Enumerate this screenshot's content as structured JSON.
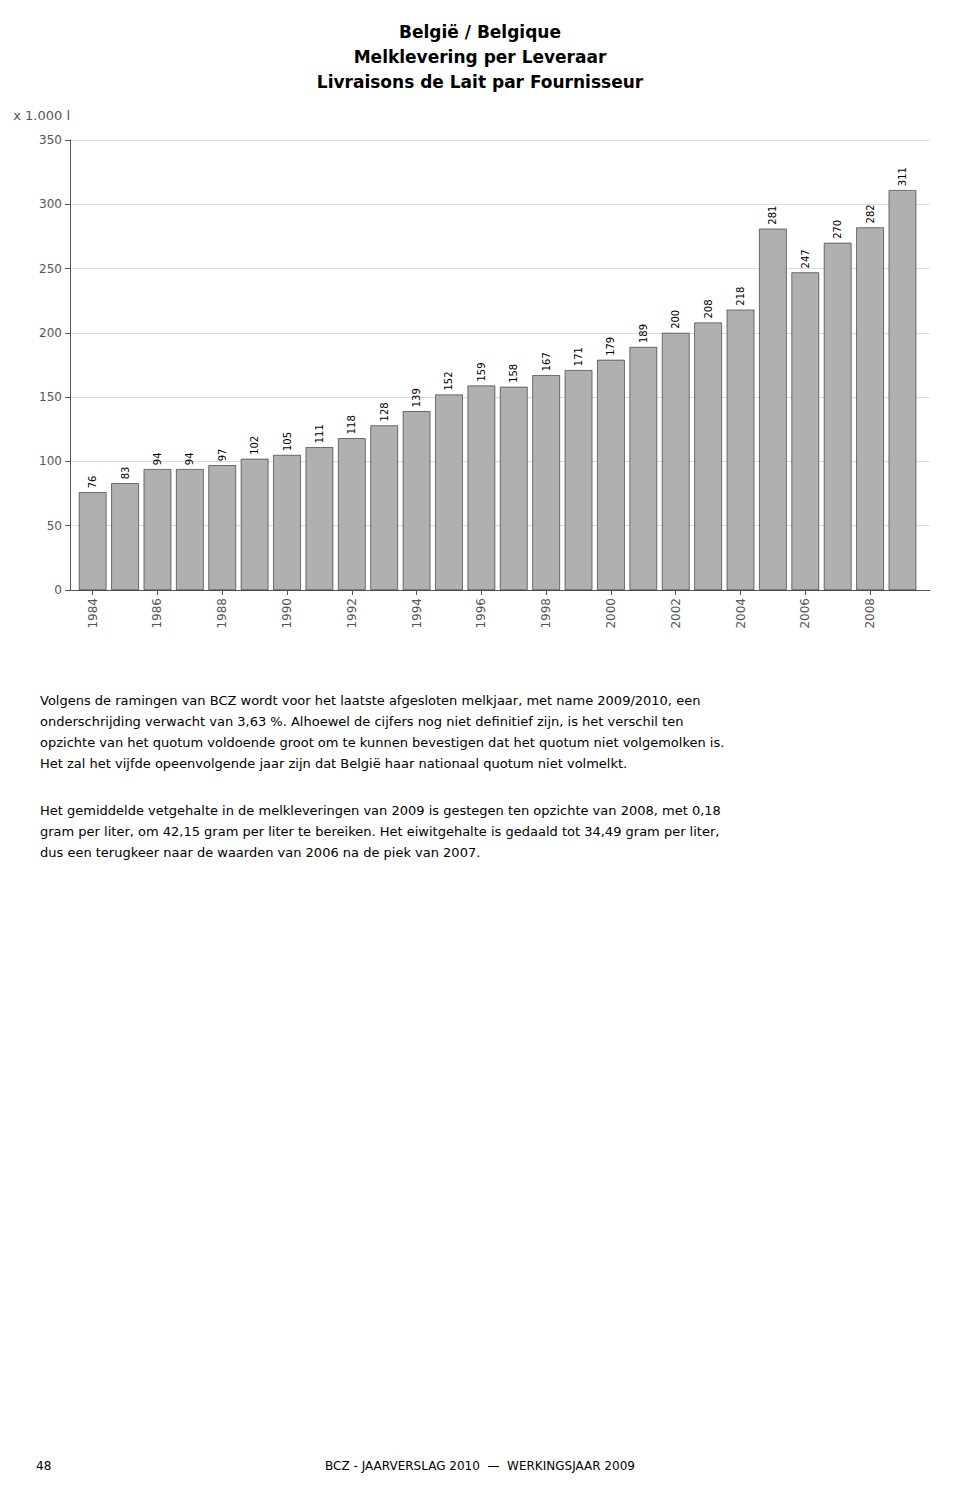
{
  "chart_data": {
    "type": "bar",
    "title": "België / Belgique\nMelklevering per Leveraar\nLivraisons de Lait par Fournisseur",
    "y_label": "x 1.000 l",
    "x": [
      1984,
      1985,
      1986,
      1987,
      1988,
      1989,
      1990,
      1991,
      1992,
      1993,
      1994,
      1995,
      1996,
      1997,
      1998,
      1999,
      2000,
      2001,
      2002,
      2003,
      2004,
      2005,
      2006,
      2007,
      2008,
      2009
    ],
    "values": [
      76,
      83,
      94,
      94,
      97,
      102,
      105,
      111,
      118,
      128,
      139,
      152,
      159,
      158,
      167,
      171,
      179,
      189,
      200,
      208,
      218,
      281,
      247,
      270,
      282,
      311
    ],
    "color": "#b0b0b0",
    "xlim": [
      1983.3,
      2009.85
    ],
    "xticks": [
      1984,
      1986,
      1988,
      1990,
      1992,
      1994,
      1996,
      1998,
      2000,
      2002,
      2004,
      2006,
      2008
    ],
    "ylim": [
      0,
      350
    ],
    "yticks": [
      0,
      50,
      100,
      150,
      200,
      250,
      300,
      350
    ],
    "grid": true,
    "data_labels": true,
    "annotations": [
      "Volgens de ramingen van BCZ wordt voor het laatste afgesloten melkjaar, met name 2009/2010, een\nonderschrijding verwacht van 3,63 %. Alhoewel de cijfers nog niet definitief zijn, is het verschil ten\nopzichte van het quotum voldoende groot om te kunnen bevestigen dat het quotum niet volgemolken is.\nHet zal het vijfde opeenvolgende jaar zijn dat België haar nationaal quotum niet volmelkt.",
      "Het gemiddelde vetgehalte in de melkleveringen van 2009 is gestegen ten opzichte van 2008, met 0,18\ngram per liter, om 42,15 gram per liter te bereiken. Het eiwitgehalte is gedaald tot 34,49 gram per liter,\ndus een terugkeer naar de waarden van 2006 na de piek van 2007.",
      "48",
      "BCZ - JAARVERSLAG 2010  —  WERKINGSJAAR 2009"
    ]
  }
}
